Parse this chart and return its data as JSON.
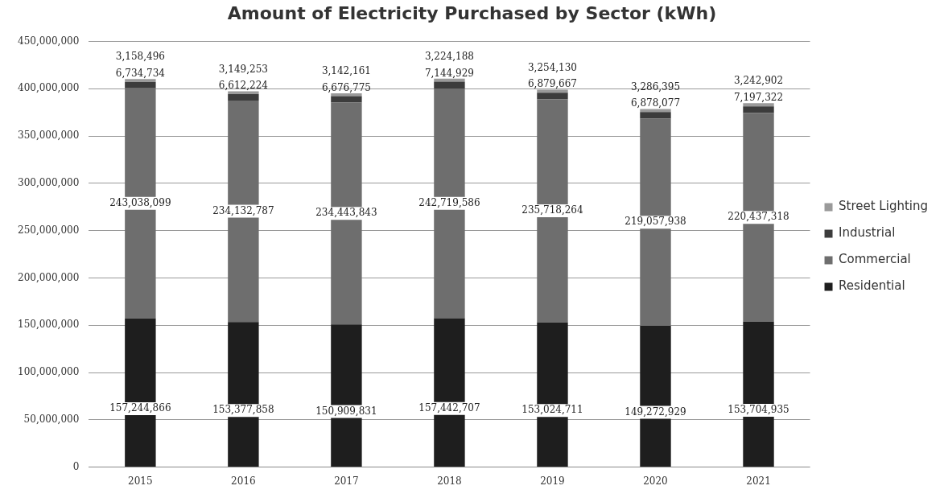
{
  "chart_data": {
    "type": "bar",
    "title": "Amount of Electricity Purchased by Sector (kWh)",
    "stacked": true,
    "categories": [
      "2015",
      "2016",
      "2017",
      "2018",
      "2019",
      "2020",
      "2021"
    ],
    "series": [
      {
        "name": "Residential",
        "color": "#1e1e1e",
        "values": [
          157244866,
          153377858,
          150909831,
          157442707,
          153024711,
          149272929,
          153704935
        ],
        "value_labels": [
          "157,244,866",
          "153,377,858",
          "150,909,831",
          "157,442,707",
          "153,024,711",
          "149,272,929",
          "153,704,935"
        ]
      },
      {
        "name": "Commercial",
        "color": "#6e6e6e",
        "values": [
          243038099,
          234132787,
          234443843,
          242719586,
          235718264,
          219057938,
          220437318
        ],
        "value_labels": [
          "243,038,099",
          "234,132,787",
          "234,443,843",
          "242,719,586",
          "235,718,264",
          "219,057,938",
          "220,437,318"
        ]
      },
      {
        "name": "Industrial",
        "color": "#3c3c3c",
        "values": [
          6734734,
          6612224,
          6676775,
          7144929,
          6879667,
          6878077,
          7197322
        ],
        "value_labels": [
          "6,734,734",
          "6,612,224",
          "6,676,775",
          "7,144,929",
          "6,879,667",
          "6,878,077",
          "7,197,322"
        ]
      },
      {
        "name": "Street Lighting",
        "color": "#9a9a9a",
        "values": [
          3158496,
          3149253,
          3142161,
          3224188,
          3254130,
          3286395,
          3242902
        ],
        "value_labels": [
          "3,158,496",
          "3,149,253",
          "3,142,161",
          "3,224,188",
          "3,254,130",
          "3,286,395",
          "3,242,902"
        ]
      }
    ],
    "ylim": [
      0,
      450000000
    ],
    "yticks": [
      0,
      {
        "value": 50000000,
        "label": "50,000,000"
      },
      {
        "value": 100000000,
        "label": "100,000,000"
      },
      {
        "value": 150000000,
        "label": "150,000,000"
      },
      {
        "value": 200000000,
        "label": "200,000,000"
      },
      {
        "value": 250000000,
        "label": "250,000,000"
      },
      {
        "value": 300000000,
        "label": "300,000,000"
      },
      {
        "value": 350000000,
        "label": "350,000,000"
      },
      {
        "value": 400000000,
        "label": "400,000,000"
      },
      {
        "value": 450000000,
        "label": "450,000,000"
      }
    ],
    "grid": "y",
    "legend": "right"
  }
}
